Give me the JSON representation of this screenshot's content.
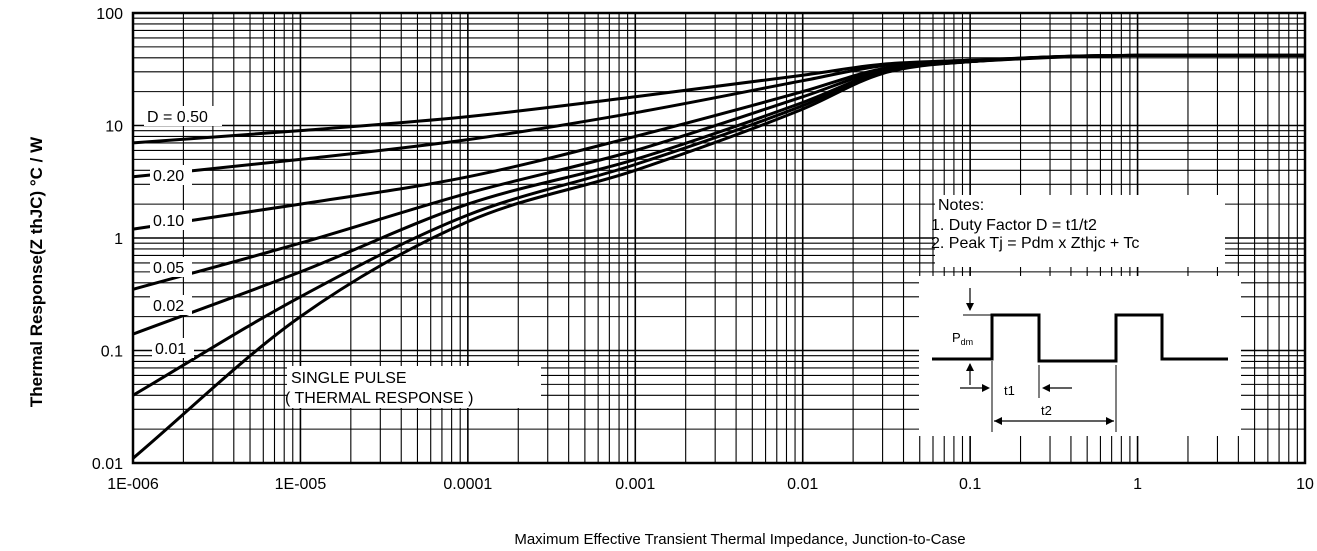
{
  "chart_data": {
    "type": "line",
    "xscale": "log",
    "yscale": "log",
    "xlim": [
      1e-06,
      10
    ],
    "ylim": [
      0.01,
      100
    ],
    "grid": true,
    "xlabel": "Maximum Effective Transient Thermal Impedance, Junction-to-Case",
    "ylabel": "Thermal Response(Z thJC) °C / W",
    "xticks": [
      "1E-006",
      "1E-005",
      "0.0001",
      "0.001",
      "0.01",
      "0.1",
      "1",
      "10"
    ],
    "yticks": [
      "0.01",
      "0.1",
      "1",
      "10",
      "100"
    ],
    "series": [
      {
        "name": "D = 0.50",
        "x": [
          1e-06,
          1e-05,
          0.0001,
          0.001,
          0.01,
          0.03,
          0.1,
          1,
          10
        ],
        "y": [
          7,
          9,
          12,
          18,
          28,
          35,
          38,
          42,
          42
        ]
      },
      {
        "name": "0.20",
        "x": [
          1e-06,
          1e-05,
          0.0001,
          0.001,
          0.01,
          0.03,
          0.1,
          1,
          10
        ],
        "y": [
          3.5,
          5,
          7.5,
          13,
          25,
          34,
          38,
          42,
          42
        ]
      },
      {
        "name": "0.10",
        "x": [
          1e-06,
          1e-05,
          0.0001,
          0.001,
          0.01,
          0.03,
          0.1,
          1,
          10
        ],
        "y": [
          1.2,
          2,
          3.5,
          8,
          20,
          32,
          37,
          42,
          42
        ]
      },
      {
        "name": "0.05",
        "x": [
          1e-06,
          1e-05,
          0.0001,
          0.001,
          0.01,
          0.03,
          0.1,
          1,
          10
        ],
        "y": [
          0.35,
          0.9,
          2.5,
          6,
          18,
          31,
          37,
          42,
          42
        ]
      },
      {
        "name": "0.02",
        "x": [
          1e-06,
          1e-05,
          0.0001,
          0.001,
          0.01,
          0.03,
          0.1,
          1,
          10
        ],
        "y": [
          0.14,
          0.5,
          2,
          5,
          16,
          30,
          37,
          42,
          42
        ]
      },
      {
        "name": "0.01",
        "x": [
          1e-06,
          1e-05,
          0.0001,
          0.001,
          0.01,
          0.03,
          0.1,
          1,
          10
        ],
        "y": [
          0.04,
          0.3,
          1.6,
          4.5,
          15,
          30,
          37,
          42,
          42
        ]
      },
      {
        "name": "SINGLE PULSE",
        "x": [
          1e-06,
          1e-05,
          0.0001,
          0.001,
          0.01,
          0.03,
          0.1,
          1,
          10
        ],
        "y": [
          0.011,
          0.2,
          1.4,
          4,
          14,
          29,
          37,
          42,
          42
        ]
      }
    ],
    "annotations": {
      "single_pulse_line1": "SINGLE PULSE",
      "single_pulse_line2": "( THERMAL RESPONSE )",
      "notes_title": "Notes:",
      "note1": "1. Duty Factor D = t1/t2",
      "note2": "2. Peak Tj = Pdm x Zthjc + Tc",
      "pdm_main": "P",
      "pdm_sub": "dm",
      "t1": "t1",
      "t2": "t2"
    }
  }
}
